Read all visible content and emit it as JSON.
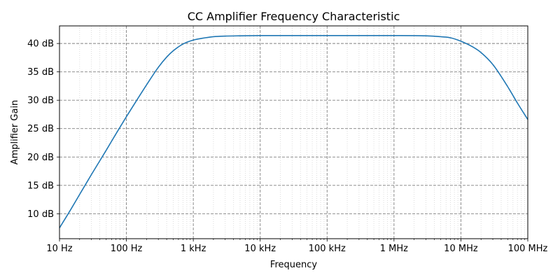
{
  "chart_data": {
    "type": "line",
    "title": "CC Amplifier Frequency Characteristic",
    "xlabel": "Frequency",
    "ylabel": "Amplifier Gain",
    "xscale": "log",
    "xlim": [
      10,
      100000000
    ],
    "ylim": [
      5.6,
      43.1
    ],
    "x_ticks": [
      {
        "value": 10,
        "label": "10 Hz"
      },
      {
        "value": 100,
        "label": "100 Hz"
      },
      {
        "value": 1000,
        "label": "1 kHz"
      },
      {
        "value": 10000,
        "label": "10 kHz"
      },
      {
        "value": 100000,
        "label": "100 kHz"
      },
      {
        "value": 1000000,
        "label": "1 MHz"
      },
      {
        "value": 10000000,
        "label": "10 MHz"
      },
      {
        "value": 100000000,
        "label": "100 MHz"
      }
    ],
    "y_ticks": [
      {
        "value": 10,
        "label": "10 dB"
      },
      {
        "value": 15,
        "label": "15 dB"
      },
      {
        "value": 20,
        "label": "20 dB"
      },
      {
        "value": 25,
        "label": "25 dB"
      },
      {
        "value": 30,
        "label": "30 dB"
      },
      {
        "value": 35,
        "label": "35 dB"
      },
      {
        "value": 40,
        "label": "40 dB"
      }
    ],
    "grid": {
      "major": "dashed",
      "minor": "dotted"
    },
    "series": [
      {
        "name": "",
        "color": "#1f77b4",
        "x": [
          10,
          15,
          20,
          30,
          50,
          70,
          100,
          150,
          200,
          300,
          400,
          500,
          700,
          1000,
          1500,
          2000,
          3000,
          5000,
          10000,
          100000,
          1000000,
          3000000,
          5000000,
          7000000,
          10000000,
          15000000,
          20000000,
          30000000,
          50000000,
          70000000,
          100000000
        ],
        "y": [
          7.5,
          10.9,
          13.4,
          16.9,
          21.2,
          24.1,
          27.1,
          30.4,
          32.7,
          35.8,
          37.6,
          38.7,
          39.9,
          40.6,
          41.0,
          41.2,
          41.3,
          41.35,
          41.4,
          41.4,
          41.4,
          41.35,
          41.2,
          41.0,
          40.4,
          39.4,
          38.4,
          36.3,
          32.4,
          29.5,
          26.6
        ]
      }
    ]
  }
}
